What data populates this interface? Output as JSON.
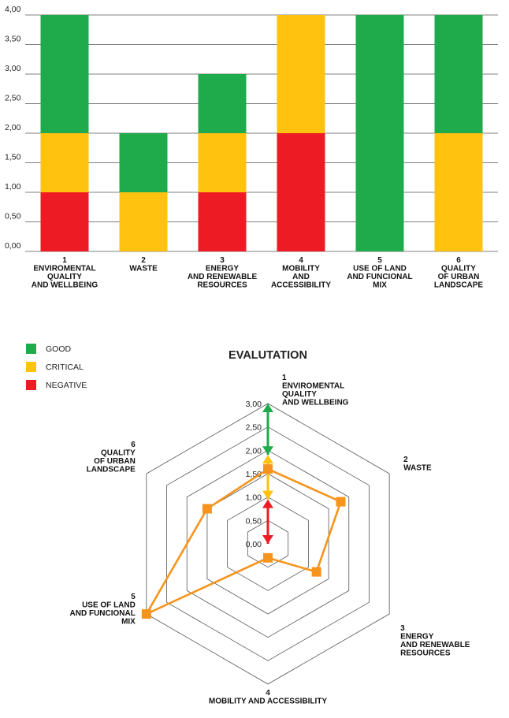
{
  "chart_data": [
    {
      "type": "bar",
      "stacked": true,
      "categories": [
        [
          "1",
          "ENVIROMENTAL",
          "QUALITY",
          "AND WELLBEING"
        ],
        [
          "2",
          "WASTE"
        ],
        [
          "3",
          "ENERGY",
          "AND RENEWABLE",
          "RESOURCES"
        ],
        [
          "4",
          "MOBILITY",
          "AND",
          "ACCESSIBILITY"
        ],
        [
          "5",
          "USE OF LAND",
          "AND FUNCIONAL",
          "MIX"
        ],
        [
          "6",
          "QUALITY",
          "OF URBAN",
          "LANDSCAPE"
        ]
      ],
      "series": [
        {
          "name": "NEGATIVE",
          "color": "#ed1c24",
          "values": [
            1,
            0,
            1,
            2,
            0,
            0
          ]
        },
        {
          "name": "CRITICAL",
          "color": "#ffc20e",
          "values": [
            1,
            1,
            1,
            2,
            0,
            2
          ]
        },
        {
          "name": "GOOD",
          "color": "#1fab4b",
          "values": [
            2,
            1,
            1,
            0,
            4,
            2
          ]
        }
      ],
      "yticks": [
        "0,00",
        "0,50",
        "1,00",
        "1,50",
        "2,00",
        "2,50",
        "3,00",
        "3,50",
        "4,00"
      ],
      "ylim": [
        0,
        4
      ],
      "grid": true
    },
    {
      "type": "radar",
      "title": "EVALUTATION",
      "axes": [
        [
          "1",
          "ENVIROMENTAL",
          "QUALITY",
          "AND WELLBEING"
        ],
        [
          "2",
          "WASTE"
        ],
        [
          "3",
          "ENERGY",
          "AND RENEWABLE",
          "RESOURCES"
        ],
        [
          "4",
          "MOBILITY AND ACCESSIBILITY"
        ],
        [
          "5",
          "USE OF LAND",
          "AND FUNCIONAL",
          "MIX"
        ],
        [
          "6",
          "QUALITY",
          "OF URBAN",
          "LANDSCAPE"
        ]
      ],
      "rticks": [
        "0,00",
        "0,50",
        "1,00",
        "1,50",
        "2,00",
        "2,50",
        "3,00"
      ],
      "rlim": [
        0,
        3
      ],
      "series": [
        {
          "color": "#f7941d",
          "values": [
            1.6,
            1.8,
            1.2,
            0.3,
            3.0,
            1.5
          ]
        }
      ],
      "scale_arrows": [
        {
          "color": "#1fab4b",
          "from": 1.9,
          "to": 3.0
        },
        {
          "color": "#ffc20e",
          "from": 0.95,
          "to": 1.9
        },
        {
          "color": "#ed1c24",
          "from": 0.0,
          "to": 0.95
        }
      ],
      "legend": [
        {
          "label": "GOOD",
          "color": "#1fab4b"
        },
        {
          "label": "CRITICAL",
          "color": "#ffc20e"
        },
        {
          "label": "NEGATIVE",
          "color": "#ed1c24"
        }
      ],
      "legend_position": "top-left"
    }
  ]
}
